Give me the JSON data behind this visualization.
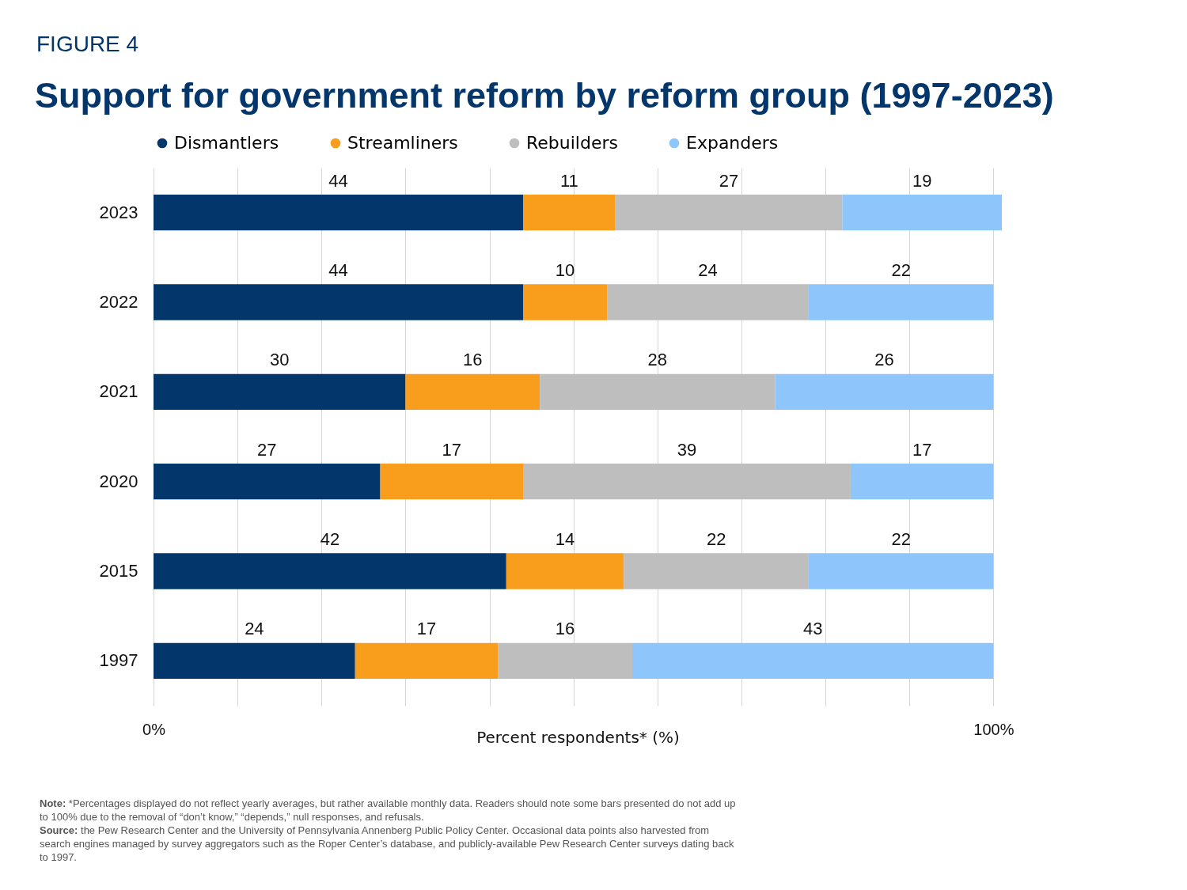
{
  "chart_data": {
    "type": "bar",
    "orientation": "horizontal",
    "stacked": true,
    "title": "Support for government reform by reform group (1997-2023)",
    "xlabel": "Percent respondents* (%)",
    "categories": [
      "2023",
      "2022",
      "2021",
      "2020",
      "2015",
      "1997"
    ],
    "series": [
      {
        "name": "Dismantlers",
        "color": "#03366b",
        "values": [
          44,
          44,
          30,
          27,
          42,
          24
        ]
      },
      {
        "name": "Streamliners",
        "color": "#f99d1c",
        "values": [
          11,
          10,
          16,
          17,
          14,
          17
        ]
      },
      {
        "name": "Rebuilders",
        "color": "#bebebe",
        "values": [
          27,
          24,
          28,
          39,
          22,
          16
        ]
      },
      {
        "name": "Expanders",
        "color": "#8ec6fb",
        "values": [
          19,
          22,
          26,
          17,
          22,
          43
        ]
      }
    ],
    "xlim": [
      0,
      101
    ],
    "xticks": [
      {
        "value": 0,
        "label": "0%"
      },
      {
        "value": 10,
        "label": null
      },
      {
        "value": 20,
        "label": null
      },
      {
        "value": 30,
        "label": null
      },
      {
        "value": 40,
        "label": null
      },
      {
        "value": 50,
        "label": null
      },
      {
        "value": 60,
        "label": null
      },
      {
        "value": 70,
        "label": null
      },
      {
        "value": 80,
        "label": null
      },
      {
        "value": 90,
        "label": null
      },
      {
        "value": 100,
        "label": "100%"
      }
    ],
    "grid": "x",
    "legend": "top left",
    "data_labels": true,
    "annotations": [
      "FIGURE 4",
      "Note: *Percentages displayed do not reflect yearly averages, but rather available monthly data. Readers should note some bars presented do not add up to 100% due to the removal of “don’t know,” “depends,” null responses, and refusals.",
      "Source: the Pew Research Center and the University of Pennsylvania Annenberg Public Policy Center. Occasional data points also harvested from search engines managed by survey aggregators such as the Roper Center’s database, and publicly-available Pew Research Center surveys dating back to 1997."
    ]
  }
}
